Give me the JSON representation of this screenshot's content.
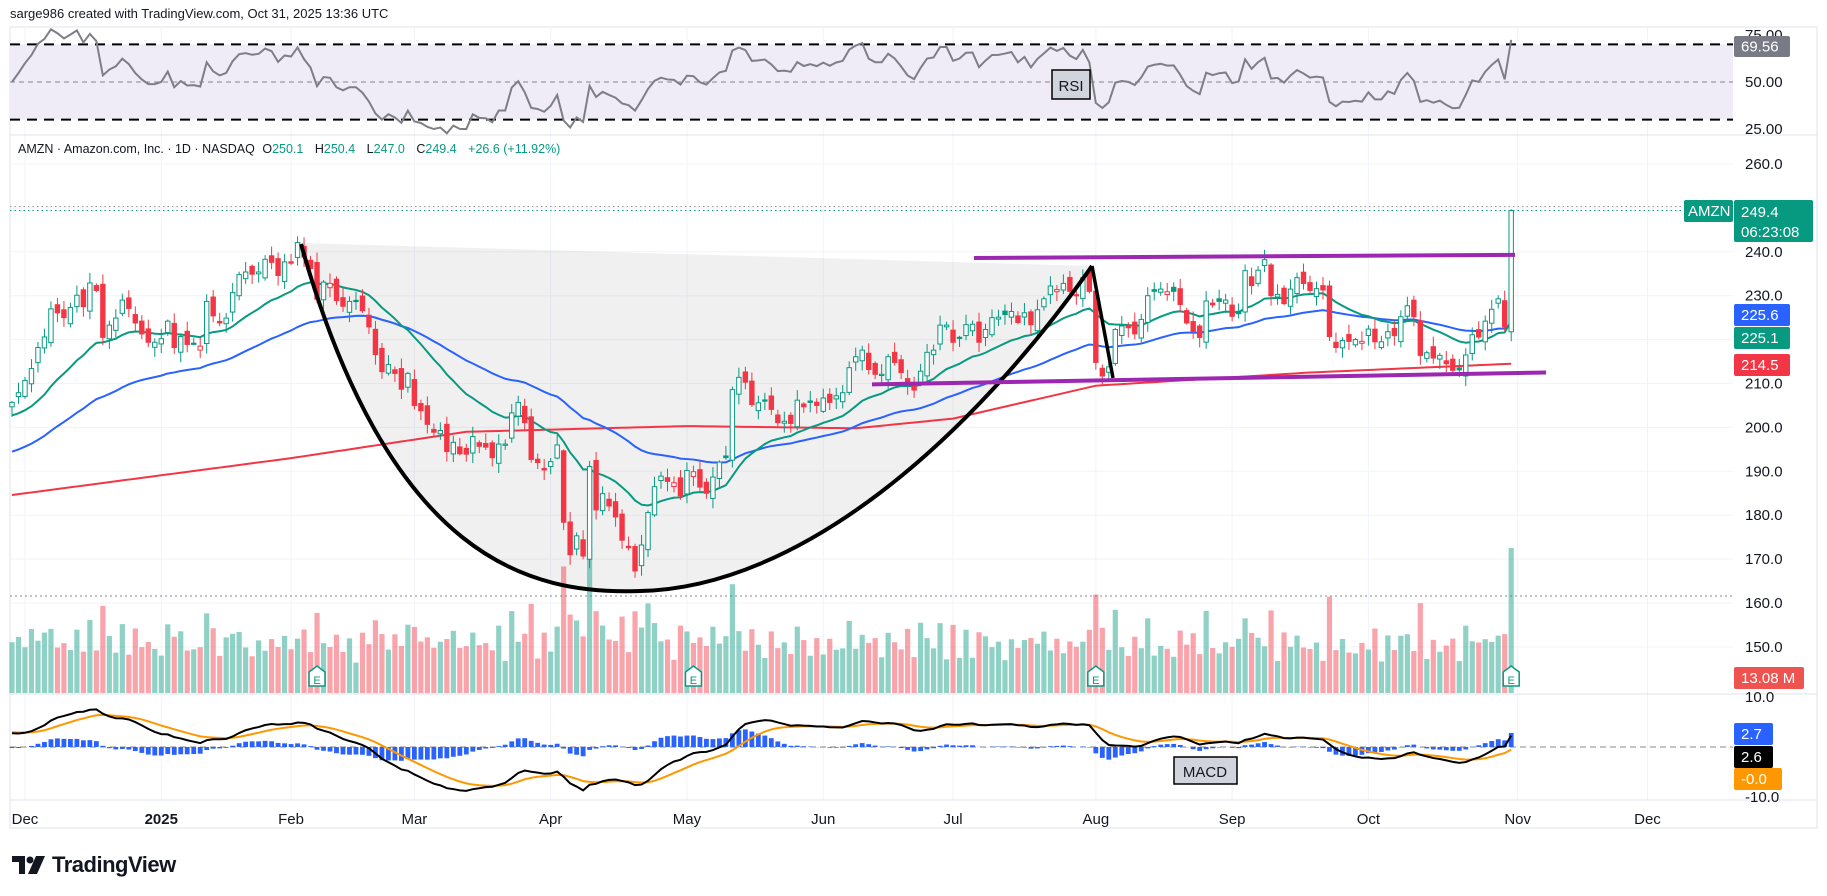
{
  "header": {
    "attribution": "sarge986 created with TradingView.com, Oct 31, 2025 13:36 UTC"
  },
  "legend": {
    "title": "AMZN · Amazon.com, Inc. · 1D · NASDAQ",
    "o_label": "O",
    "o": "250.1",
    "h_label": "H",
    "h": "250.4",
    "l_label": "L",
    "l": "247.0",
    "c_label": "C",
    "c": "249.4",
    "change": "+26.6 (+11.92%)"
  },
  "rsi": {
    "label": "RSI",
    "value": "69.56",
    "axis": [
      {
        "v": 75,
        "t": "75.00"
      },
      {
        "v": 50,
        "t": "50.00"
      },
      {
        "v": 25,
        "t": "25.00"
      }
    ],
    "upper": 70,
    "lower": 30
  },
  "price_axis": [
    {
      "v": 260,
      "t": "260.0"
    },
    {
      "v": 250,
      "t": ""
    },
    {
      "v": 240,
      "t": "240.0"
    },
    {
      "v": 230,
      "t": "230.0"
    },
    {
      "v": 220,
      "t": ""
    },
    {
      "v": 210,
      "t": "210.0"
    },
    {
      "v": 200,
      "t": "200.0"
    },
    {
      "v": 190,
      "t": "190.0"
    },
    {
      "v": 180,
      "t": "180.0"
    },
    {
      "v": 170,
      "t": "170.0"
    },
    {
      "v": 160,
      "t": "160.0"
    },
    {
      "v": 150,
      "t": "150.0"
    }
  ],
  "tags": {
    "symbol": "AMZN",
    "last": "249.4",
    "countdown": "06:23:08",
    "ma_blue": "225.6",
    "ma_green": "225.1",
    "ma_red": "214.5",
    "volume": "13.08 M",
    "macd_hist": "2.7",
    "macd_line": "2.6",
    "macd_signal": "-0.0"
  },
  "macd": {
    "label": "MACD",
    "axis": [
      {
        "v": 10,
        "t": "10.0"
      },
      {
        "v": -10,
        "t": "-10.0"
      }
    ]
  },
  "time_axis": [
    {
      "label": "Dec",
      "bar": 2
    },
    {
      "label": "2025",
      "bar": 23,
      "bold": true
    },
    {
      "label": "Feb",
      "bar": 43
    },
    {
      "label": "Mar",
      "bar": 62
    },
    {
      "label": "Apr",
      "bar": 83
    },
    {
      "label": "May",
      "bar": 104
    },
    {
      "label": "Jun",
      "bar": 125
    },
    {
      "label": "Jul",
      "bar": 145
    },
    {
      "label": "Aug",
      "bar": 167
    },
    {
      "label": "Sep",
      "bar": 188
    },
    {
      "label": "Oct",
      "bar": 209
    },
    {
      "label": "Nov",
      "bar": 232
    },
    {
      "label": "Dec",
      "bar": 252
    }
  ],
  "earnings": {
    "label": "E",
    "bars": [
      47,
      105,
      167,
      231
    ]
  },
  "logo": "TradingView",
  "colors": {
    "up": "#089981",
    "down": "#f23645",
    "ema": "#089981",
    "ma_blue": "#2962ff",
    "ma_red": "#f23645",
    "pattern": "#9c27b0",
    "signal": "#ff9800",
    "rsi_line": "#7e7e86",
    "rsi_band": "#efecf8"
  },
  "chart_data": {
    "type": "candlestick",
    "symbol": "AMZN",
    "start_date": "2024-11-27",
    "end_date": "2025-10-31",
    "ylim": [
      139.5,
      272
    ],
    "closes": [
      205.7,
      207.9,
      210.7,
      213.4,
      218.2,
      220.6,
      227.0,
      226.1,
      225.0,
      227.3,
      230.1,
      227.5,
      232.9,
      231.2,
      220.5,
      223.3,
      224.9,
      229.0,
      227.1,
      223.8,
      221.3,
      219.4,
      219.4,
      220.2,
      224.2,
      218.2,
      220.7,
      218.9,
      219.0,
      218.5,
      228.7,
      225.4,
      223.8,
      224.9,
      230.7,
      234.8,
      235.4,
      234.9,
      235.4,
      238.3,
      237.6,
      234.6,
      237.7,
      237.4,
      242.1,
      238.8,
      236.2,
      229.2,
      233.1,
      232.8,
      228.9,
      227.6,
      228.7,
      228.7,
      226.6,
      222.9,
      216.6,
      212.7,
      214.3,
      212.3,
      208.7,
      212.3,
      205.0,
      203.8,
      200.7,
      198.9,
      199.3,
      194.5,
      196.6,
      194.0,
      193.9,
      197.9,
      195.7,
      195.5,
      193.1,
      196.2,
      196.2,
      203.3,
      205.7,
      201.1,
      192.7,
      192.0,
      190.3,
      192.2,
      196.0,
      178.4,
      171.0,
      175.3,
      170.7,
      191.1,
      181.2,
      184.9,
      182.1,
      179.6,
      174.3,
      172.6,
      167.3,
      173.2,
      180.6,
      186.5,
      188.9,
      187.7,
      187.4,
      184.4,
      190.2,
      189.9,
      186.4,
      185.0,
      188.7,
      192.1,
      193.1,
      208.6,
      211.4,
      210.3,
      205.2,
      205.6,
      206.2,
      204.1,
      201.1,
      201.4,
      200.9,
      206.2,
      204.7,
      205.7,
      205.0,
      206.7,
      205.7,
      207.2,
      207.9,
      213.6,
      216.1,
      217.6,
      213.2,
      212.1,
      212.1,
      216.1,
      214.8,
      212.5,
      209.7,
      208.5,
      212.8,
      217.1,
      217.6,
      223.3,
      223.3,
      219.4,
      220.5,
      223.4,
      223.5,
      219.4,
      222.3,
      225.0,
      225.1,
      225.7,
      226.4,
      223.9,
      226.1,
      223.4,
      226.8,
      229.3,
      232.2,
      231.4,
      232.8,
      231.0,
      230.2,
      234.1,
      231.0,
      214.8,
      211.7,
      213.8,
      222.3,
      223.1,
      222.7,
      221.3,
      224.6,
      230.0,
      231.0,
      231.5,
      230.9,
      231.0,
      228.0,
      223.8,
      221.9,
      220.5,
      228.8,
      227.9,
      228.7,
      229.0,
      225.3,
      225.9,
      235.7,
      232.3,
      235.8,
      238.2,
      230.0,
      230.3,
      228.2,
      231.5,
      234.1,
      232.8,
      231.2,
      231.6,
      231.3,
      220.7,
      218.2,
      219.8,
      219.6,
      220.0,
      219.6,
      222.4,
      219.5,
      219.5,
      221.8,
      220.9,
      225.2,
      227.7,
      225.2,
      216.4,
      217.0,
      215.8,
      216.4,
      214.5,
      213.0,
      213.1,
      216.5,
      221.1,
      220.6,
      224.2,
      226.9,
      229.3,
      222.9,
      249.4
    ],
    "ma200_anchors": [
      [
        0,
        184.6
      ],
      [
        43,
        193
      ],
      [
        70,
        199
      ],
      [
        104,
        200.3
      ],
      [
        130,
        199.8
      ],
      [
        145,
        202
      ],
      [
        167,
        209.5
      ],
      [
        200,
        212.5
      ],
      [
        231,
        214.5
      ]
    ],
    "cup_handle": {
      "rim_left": 242,
      "bottom": 162.7,
      "rim_right": 237,
      "handle_low": 211
    },
    "channel": {
      "upper": [
        238.6,
        239.3
      ],
      "lower": [
        209.8,
        212.5
      ]
    }
  }
}
